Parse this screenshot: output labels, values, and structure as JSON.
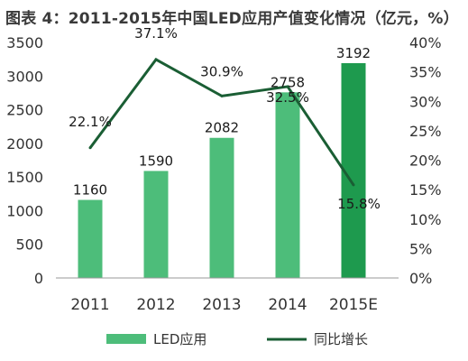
{
  "chart_data": {
    "type": "bar",
    "title": "图表 4：2011-2015年中国LED应用产值变化情况（亿元，%）",
    "categories": [
      "2011",
      "2012",
      "2013",
      "2014",
      "2015E"
    ],
    "series": [
      {
        "name": "LED应用",
        "type": "bar",
        "axis": "left",
        "values": [
          1160,
          1590,
          2082,
          2758,
          3192
        ],
        "color": "#4dbd7a",
        "highlight_color": "#1e9a4e"
      },
      {
        "name": "同比增长",
        "type": "line",
        "axis": "right",
        "values": [
          22.1,
          37.1,
          30.9,
          32.5,
          15.8
        ],
        "color": "#1a5e34"
      }
    ],
    "y_left": {
      "min": 0,
      "max": 3500,
      "step": 500
    },
    "y_right": {
      "min": 0,
      "max": 40,
      "step": 5,
      "unit": "%"
    },
    "bar_labels": [
      "1160",
      "1590",
      "2082",
      "2758",
      "3192"
    ],
    "line_labels": [
      "22.1%",
      "37.1%",
      "30.9%",
      "32.5%",
      "15.8%"
    ],
    "grid": false,
    "legend_position": "bottom"
  }
}
